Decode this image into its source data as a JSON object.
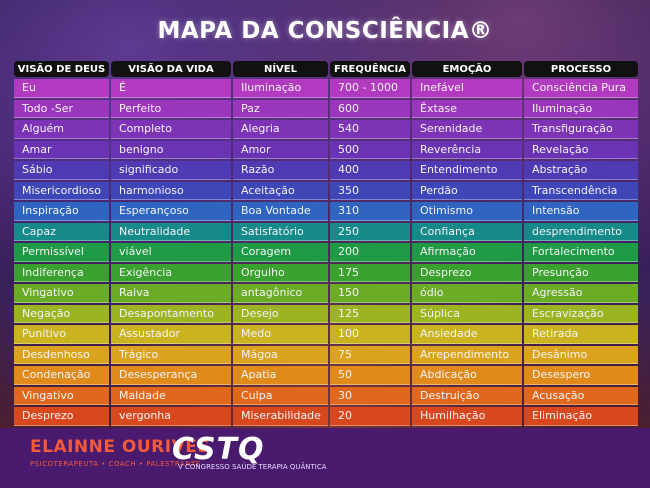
{
  "title": "MAPA DA CONSCIÊNCIA®",
  "headers": [
    "VISÃO DE DEUS",
    "VISÃO DA VIDA",
    "NÍVEL",
    "FREQUÊNCIA",
    "EMOÇÃO",
    "PROCESSO"
  ],
  "rows": [
    {
      "color": "#b23ac0",
      "cells": [
        "Eu",
        "É",
        "Iluminação",
        "700 - 1000",
        "Inefável",
        "Consciência Pura"
      ]
    },
    {
      "color": "#9a36bb",
      "cells": [
        "Todo -Ser",
        "Perfeito",
        "Paz",
        "600",
        "Êxtase",
        "Iluminação"
      ]
    },
    {
      "color": "#7d33b6",
      "cells": [
        "Alguém",
        "Completo",
        "Alegria",
        "540",
        "Serenidade",
        "Transfiguração"
      ]
    },
    {
      "color": "#6a33b3",
      "cells": [
        "Amar",
        "benigno",
        "Amor",
        "500",
        "Reverência",
        "Revelação"
      ]
    },
    {
      "color": "#4f3ab3",
      "cells": [
        "Sábio",
        "significado",
        "Razão",
        "400",
        "Entendimento",
        "Abstração"
      ]
    },
    {
      "color": "#3f46b8",
      "cells": [
        "Misericordioso",
        "harmonioso",
        "Aceitação",
        "350",
        "Perdão",
        "Transcendência"
      ]
    },
    {
      "color": "#2f64c0",
      "cells": [
        "Inspiração",
        "Esperançoso",
        "Boa Vontade",
        "310",
        "Otimismo",
        "Intensão"
      ]
    },
    {
      "color": "#168a8a",
      "cells": [
        "Capaz",
        "Neutralidade",
        "Satisfatório",
        "250",
        "Confiança",
        "desprendimento"
      ]
    },
    {
      "color": "#1f9a45",
      "cells": [
        "Permissível",
        "viável",
        "Coragem",
        "200",
        "Afirmação",
        "Fortalecimento"
      ]
    },
    {
      "color": "#3aa12e",
      "cells": [
        "Indiferença",
        "Exigência",
        "Orgulho",
        "175",
        "Desprezo",
        "Presunção"
      ]
    },
    {
      "color": "#6aac26",
      "cells": [
        "Vingativo",
        "Raiva",
        "antagônico",
        "150",
        "ódio",
        "Agressão"
      ]
    },
    {
      "color": "#9db422",
      "cells": [
        "Negação",
        "Desapontamento",
        "Desejo",
        "125",
        "Súplica",
        "Escravização"
      ]
    },
    {
      "color": "#c9b420",
      "cells": [
        "Punitivo",
        "Assustador",
        "Medo",
        "100",
        "Ansiedade",
        "Retirada"
      ]
    },
    {
      "color": "#dba31d",
      "cells": [
        "Desdenhoso",
        "Trágico",
        "Mágoa",
        "75",
        "Arrependimento",
        "Desânimo"
      ]
    },
    {
      "color": "#e08a1c",
      "cells": [
        "Condenação",
        "Desesperança",
        "Apatia",
        "50",
        "Abdicação",
        "Desespero"
      ]
    },
    {
      "color": "#e0681d",
      "cells": [
        "Vingativo",
        "Maldade",
        "Culpa",
        "30",
        "Destruição",
        "Acusação"
      ]
    },
    {
      "color": "#d8481f",
      "cells": [
        "Desprezo",
        "vergonha",
        "Miserabilidade",
        "20",
        "Humilhação",
        "Eliminação"
      ]
    }
  ],
  "footer": {
    "brand1": "ELAINNE OURIVES",
    "brand1_sub": "PSICOTERAPEUTA • COACH • PALESTRANTE",
    "brand2": "CSTQ",
    "brand2_sub": "V CONGRESSO SAÚDE TERAPIA QUÂNTICA"
  }
}
